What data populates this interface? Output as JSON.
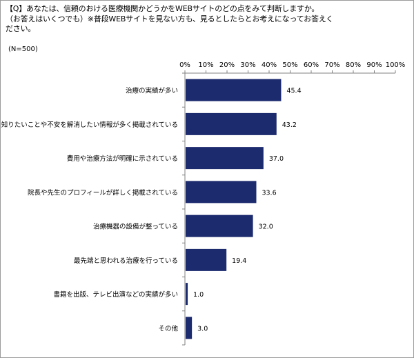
{
  "question": {
    "line1": "【Q】あなたは、信頼のおける医療機関かどうかをWEBサイトのどの点をみて判断しますか。",
    "line2": "（お答えはいくつでも）※普段WEBサイトを見ない方も、見るとしたらとお考えになってお答えく",
    "line3": "ださい。",
    "sample": "(N=500)"
  },
  "chart_data": {
    "type": "bar",
    "orientation": "horizontal",
    "categories": [
      "治療の実績が多い",
      "知りたいことや不安を解消したい情報が多く掲載されている",
      "費用や治療方法が明確に示されている",
      "院長や先生のプロフィールが詳しく掲載されている",
      "治療機器の設備が整っている",
      "最先端と思われる治療を行っている",
      "書籍を出版、テレビ出演などの実績が多い",
      "その他"
    ],
    "values": [
      45.4,
      43.2,
      37.0,
      33.6,
      32.0,
      19.4,
      1.0,
      3.0
    ],
    "value_labels": [
      "45.4",
      "43.2",
      "37.0",
      "33.6",
      "32.0",
      "19.4",
      "1.0",
      "3.0"
    ],
    "xlim": [
      0,
      100
    ],
    "ticks": [
      "0%",
      "10%",
      "20%",
      "30%",
      "40%",
      "50%",
      "60%",
      "70%",
      "80%",
      "90%",
      "100%"
    ],
    "tick_values": [
      0,
      10,
      20,
      30,
      40,
      50,
      60,
      70,
      80,
      90,
      100
    ],
    "axis_position": "top",
    "grid": false,
    "legend": "none",
    "bar_color": "#1c2a6e"
  }
}
